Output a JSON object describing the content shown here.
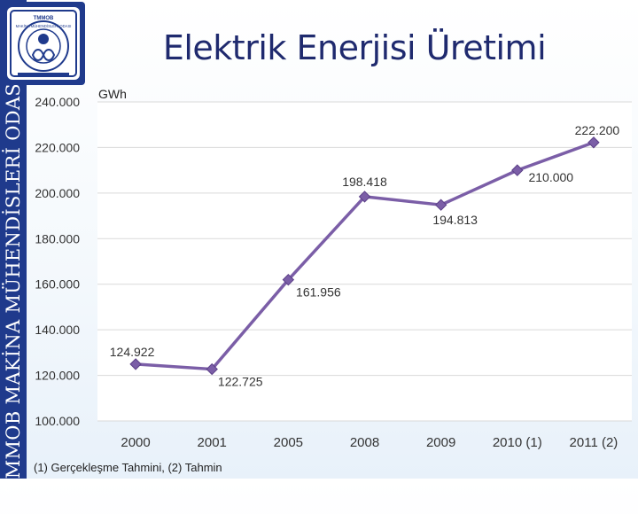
{
  "sidebar": {
    "organization": "TMMOB MAKİNA MÜHENDİSLERİ ODASI"
  },
  "logo": {
    "top_text": "TMMOB",
    "ring_text": "MAKİNA MÜHENDİSLERİ ODASI"
  },
  "slide": {
    "title": "Elektrik Enerjisi Üretimi",
    "footnote": "(1) Gerçekleşme Tahmini, (2) Tahmin"
  },
  "chart_data": {
    "type": "line",
    "unit_label": "GWh",
    "categories": [
      "2000",
      "2001",
      "2005",
      "2008",
      "2009",
      "2010 (1)",
      "2011 (2)"
    ],
    "values": [
      124922,
      122725,
      161956,
      198418,
      194813,
      210000,
      222200
    ],
    "data_labels": [
      "124.922",
      "122.725",
      "161.956",
      "198.418",
      "194.813",
      "210.000",
      "222.200"
    ],
    "y_ticks": [
      100000,
      120000,
      140000,
      160000,
      180000,
      200000,
      220000,
      240000
    ],
    "y_tick_labels": [
      "100.000",
      "120.000",
      "140.000",
      "160.000",
      "180.000",
      "200.000",
      "220.000",
      "240.000"
    ],
    "ylim": [
      100000,
      240000
    ],
    "grid": true,
    "colors": {
      "line": "#7b5ea7",
      "marker": "#7b5ea7",
      "grid": "#d9d9d9",
      "plot_bg": "#ffffff"
    }
  }
}
